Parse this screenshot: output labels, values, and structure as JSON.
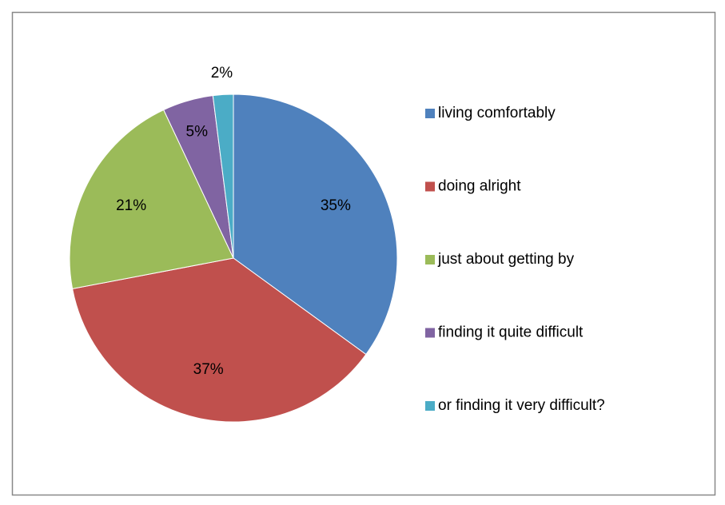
{
  "chart_data": {
    "type": "pie",
    "categories": [
      "living comfortably",
      "doing alright",
      "just about getting by",
      "finding it quite difficult",
      "or finding it very difficult?"
    ],
    "values": [
      35,
      37,
      21,
      5,
      2
    ],
    "value_labels": [
      "35%",
      "37%",
      "21%",
      "5%",
      "2%"
    ],
    "colors": [
      "#4f81bd",
      "#c0504d",
      "#9bbb59",
      "#8064a2",
      "#4bacc6"
    ],
    "legend": "right"
  }
}
